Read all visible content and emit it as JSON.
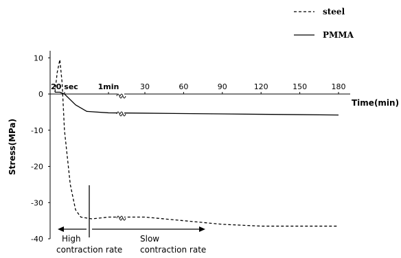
{
  "chart_data": {
    "type": "line",
    "title": "",
    "xlabel": "Time(min)",
    "ylabel": "Stress(MPa)",
    "ylim": [
      -40,
      15
    ],
    "grid": false,
    "legend_position": "top-right",
    "y_ticks": [
      10,
      0,
      -10,
      -20,
      -30,
      -40
    ],
    "x_tick_labels": [
      "20 sec",
      "1min",
      "30",
      "60",
      "90",
      "120",
      "150",
      "180"
    ],
    "x_tick_values_min": [
      0.333,
      1,
      30,
      60,
      90,
      120,
      150,
      180
    ],
    "axis_break": "between 1min and 30",
    "series": [
      {
        "name": "steel",
        "style": "dashed",
        "points": [
          {
            "t": 0,
            "y": 0.5
          },
          {
            "t": 0.08,
            "y": 6
          },
          {
            "t": 0.17,
            "y": 9.5
          },
          {
            "t": 0.25,
            "y": 3
          },
          {
            "t": 0.33,
            "y": -10
          },
          {
            "t": 0.42,
            "y": -25
          },
          {
            "t": 0.5,
            "y": -32
          },
          {
            "t": 0.58,
            "y": -34
          },
          {
            "t": 0.75,
            "y": -34.5
          },
          {
            "t": 1,
            "y": -34
          },
          {
            "t": 30,
            "y": -34
          },
          {
            "t": 60,
            "y": -35
          },
          {
            "t": 90,
            "y": -36
          },
          {
            "t": 120,
            "y": -36.5
          },
          {
            "t": 150,
            "y": -36.5
          },
          {
            "t": 180,
            "y": -36.5
          }
        ]
      },
      {
        "name": "PMMA",
        "style": "solid",
        "points": [
          {
            "t": 0,
            "y": 0.5
          },
          {
            "t": 0.17,
            "y": 0.5
          },
          {
            "t": 0.33,
            "y": 0
          },
          {
            "t": 0.5,
            "y": -3
          },
          {
            "t": 0.67,
            "y": -4.8
          },
          {
            "t": 1,
            "y": -5.2
          },
          {
            "t": 30,
            "y": -5.3
          },
          {
            "t": 60,
            "y": -5.4
          },
          {
            "t": 90,
            "y": -5.5
          },
          {
            "t": 120,
            "y": -5.6
          },
          {
            "t": 150,
            "y": -5.7
          },
          {
            "t": 180,
            "y": -5.8
          }
        ]
      }
    ],
    "annotations": {
      "high_line1": "High",
      "high_line2": "contraction rate",
      "slow_line1": "Slow",
      "slow_line2": "contraction rate"
    }
  }
}
